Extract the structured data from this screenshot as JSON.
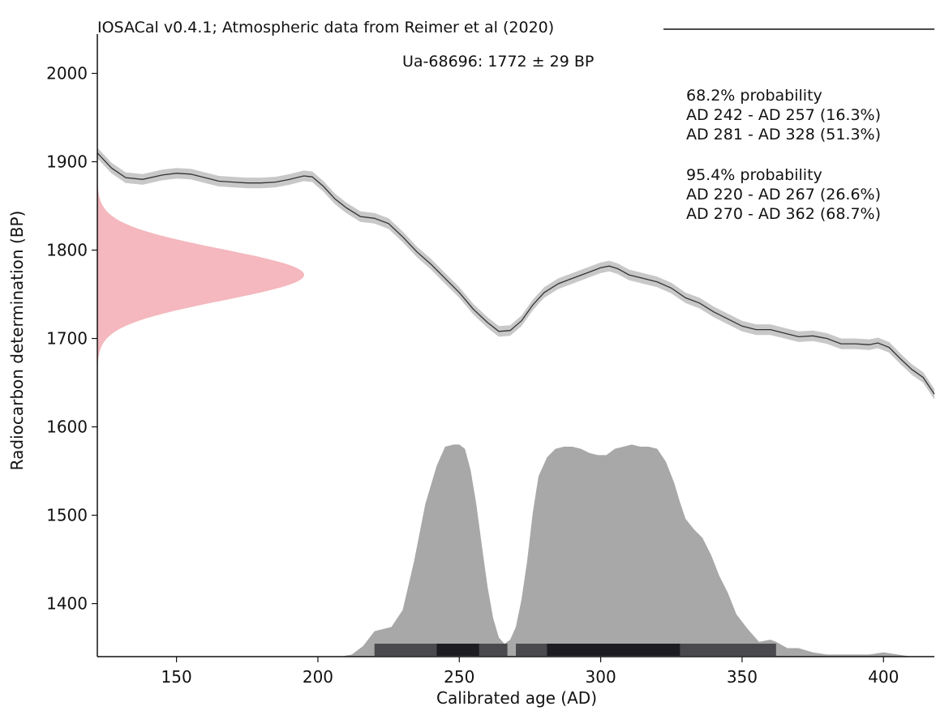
{
  "chart_data": {
    "type": "area",
    "title": "IOSACal v0.4.1; Atmospheric data from Reimer et al (2020)",
    "xlabel": "Calibrated age (AD)",
    "ylabel": "Radiocarbon determination (BP)",
    "xlim": [
      122,
      418
    ],
    "ylim": [
      1340,
      2050
    ],
    "x_ticks": [
      150,
      200,
      250,
      300,
      350,
      400
    ],
    "y_ticks": [
      1400,
      1500,
      1600,
      1700,
      1800,
      1900,
      2000
    ],
    "grid": false,
    "sample_label": "Ua-68696: 1772 ± 29 BP",
    "probabilities": [
      {
        "heading": "68.2% probability",
        "ranges": [
          "AD 242 - AD 257 (16.3%)",
          "AD 281 - AD 328 (51.3%)"
        ]
      },
      {
        "heading": "95.4% probability",
        "ranges": [
          "AD 220 - AD 267 (26.6%)",
          "AD 270 - AD 362 (68.7%)"
        ]
      }
    ],
    "measurement": {
      "mean_bp": 1772,
      "sigma_bp": 29,
      "color": "#f4b8be"
    },
    "calibration_curve": {
      "color": "#333333",
      "band_color": "#c8c8c8",
      "x": [
        122,
        127,
        132,
        138,
        145,
        150,
        155,
        160,
        165,
        170,
        175,
        180,
        185,
        190,
        195,
        198,
        202,
        206,
        210,
        215,
        220,
        225,
        230,
        235,
        240,
        245,
        250,
        255,
        260,
        264,
        268,
        272,
        276,
        280,
        285,
        290,
        295,
        300,
        303,
        306,
        310,
        315,
        320,
        325,
        330,
        335,
        340,
        345,
        350,
        355,
        360,
        365,
        370,
        375,
        380,
        385,
        390,
        395,
        398,
        402,
        406,
        410,
        414,
        418
      ],
      "y": [
        1910,
        1893,
        1882,
        1880,
        1885,
        1887,
        1886,
        1882,
        1878,
        1877,
        1876,
        1876,
        1877,
        1880,
        1884,
        1883,
        1872,
        1858,
        1848,
        1838,
        1836,
        1830,
        1815,
        1798,
        1784,
        1768,
        1752,
        1733,
        1718,
        1708,
        1709,
        1720,
        1738,
        1752,
        1762,
        1768,
        1774,
        1780,
        1782,
        1779,
        1772,
        1768,
        1764,
        1757,
        1746,
        1740,
        1730,
        1722,
        1714,
        1710,
        1710,
        1706,
        1702,
        1703,
        1700,
        1694,
        1694,
        1693,
        1695,
        1690,
        1677,
        1665,
        1656,
        1637
      ],
      "band_half_width": 6
    },
    "calibrated_distribution": {
      "color": "#a8a8a8",
      "x": [
        208,
        212,
        216,
        220,
        223,
        226,
        230,
        234,
        238,
        242,
        245,
        248,
        250,
        252,
        254,
        256,
        258,
        260,
        262,
        264,
        266,
        268,
        270,
        272,
        274,
        276,
        278,
        281,
        284,
        287,
        290,
        293,
        296,
        299,
        302,
        305,
        308,
        311,
        314,
        317,
        320,
        323,
        326,
        328,
        330,
        333,
        336,
        339,
        342,
        345,
        348,
        352,
        356,
        360,
        362,
        366,
        370,
        375,
        380,
        385,
        390,
        395,
        400,
        405,
        410,
        418
      ],
      "y": [
        0.0,
        0.01,
        0.05,
        0.12,
        0.13,
        0.14,
        0.22,
        0.45,
        0.72,
        0.9,
        0.99,
        1.0,
        1.0,
        0.98,
        0.88,
        0.72,
        0.52,
        0.33,
        0.18,
        0.09,
        0.06,
        0.08,
        0.14,
        0.27,
        0.45,
        0.68,
        0.85,
        0.94,
        0.98,
        0.99,
        0.99,
        0.98,
        0.96,
        0.95,
        0.95,
        0.98,
        0.99,
        1.0,
        0.99,
        0.99,
        0.98,
        0.92,
        0.82,
        0.73,
        0.65,
        0.6,
        0.56,
        0.48,
        0.38,
        0.3,
        0.2,
        0.13,
        0.07,
        0.08,
        0.07,
        0.04,
        0.04,
        0.02,
        0.01,
        0.01,
        0.01,
        0.01,
        0.02,
        0.01,
        0.0,
        0.0
      ],
      "scale_bp": 240
    },
    "hpd_bars": [
      {
        "from": 220,
        "to": 267,
        "level": "95.4%",
        "color": "#4a4a4e"
      },
      {
        "from": 270,
        "to": 362,
        "level": "95.4%",
        "color": "#4a4a4e"
      },
      {
        "from": 242,
        "to": 257,
        "level": "68.2%",
        "color": "#1c1c22"
      },
      {
        "from": 281,
        "to": 328,
        "level": "68.2%",
        "color": "#1c1c22"
      }
    ]
  }
}
